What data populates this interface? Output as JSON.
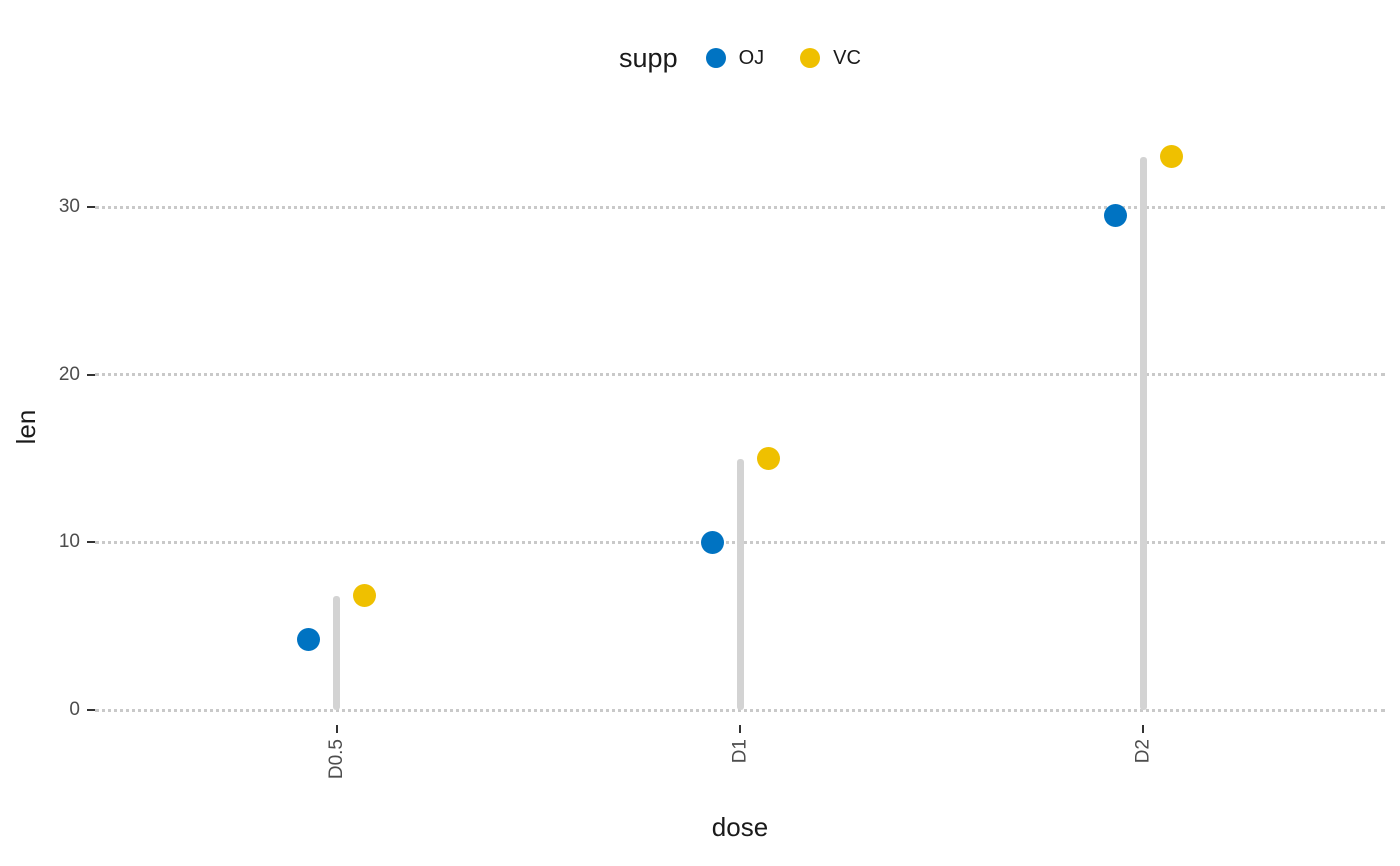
{
  "chart_data": {
    "type": "scatter",
    "subtype": "lollipop-dot-chart",
    "title": "",
    "xlabel": "dose",
    "ylabel": "len",
    "legend_title": "supp",
    "legend_position": "top",
    "categories": [
      "D0.5",
      "D1",
      "D2"
    ],
    "series": [
      {
        "name": "OJ",
        "color": "#0073C2",
        "values": [
          4.2,
          10,
          29.5
        ]
      },
      {
        "name": "VC",
        "color": "#EFC000",
        "values": [
          6.8,
          15,
          33
        ]
      }
    ],
    "segments": {
      "description": "vertical light-gray stick at each category from 0 up to the max value of that category",
      "color": "#D3D3D3"
    },
    "yticks": [
      0,
      10,
      20,
      30
    ],
    "ylim": [
      0,
      35.8
    ],
    "grid": {
      "horizontal": "dotted",
      "color": "#C9C9C9",
      "background": "#FFFFFF"
    },
    "text_colors": {
      "tick_labels": "#4D4D4D",
      "axis_titles": "#1A1A1A"
    }
  }
}
